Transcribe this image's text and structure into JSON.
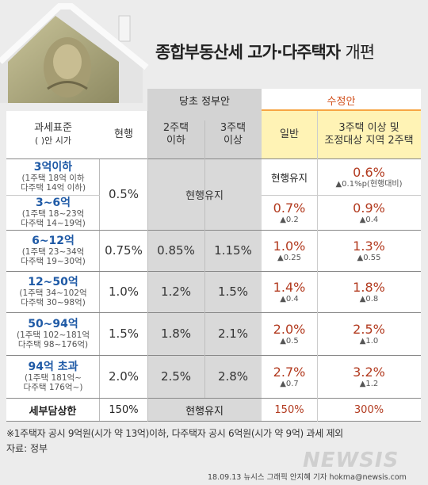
{
  "title": {
    "main": "종합부동산세 고가·다주택자",
    "suffix": "개편"
  },
  "header": {
    "group_original": "당초 정부안",
    "group_revised": "수정안",
    "col_base": [
      "과세표준",
      "( )안 시가"
    ],
    "col_current": "현행",
    "col_orig_2": [
      "2주택",
      "이하"
    ],
    "col_orig_3": [
      "3주택",
      "이상"
    ],
    "col_rev_general": "일반",
    "col_rev_multi": [
      "3주택 이상 및",
      "조정대상 지역 2주택"
    ]
  },
  "rows": [
    {
      "bracket": "3억이하",
      "notes": [
        "(1주택 18억 이하",
        "다주택 14억 이하)"
      ],
      "revised_general": "현행유지",
      "revised_multi": "0.6%",
      "revised_multi_sub": "▲0.1%p(현행대비)"
    },
    {
      "bracket": "3~6억",
      "notes": [
        "(1주택 18~23억",
        "다주택 14~19억)"
      ],
      "revised_general": "0.7%",
      "revised_general_sub": "▲0.2",
      "revised_multi": "0.9%",
      "revised_multi_sub": "▲0.4"
    },
    {
      "bracket": "6~12억",
      "notes": [
        "(1주택 23~34억",
        "다주택 19~30억)"
      ],
      "current": "0.75%",
      "orig_2": "0.85%",
      "orig_3": "1.15%",
      "revised_general": "1.0%",
      "revised_general_sub": "▲0.25",
      "revised_multi": "1.3%",
      "revised_multi_sub": "▲0.55"
    },
    {
      "bracket": "12~50억",
      "notes": [
        "(1주택 34~102억",
        "다주택 30~98억)"
      ],
      "current": "1.0%",
      "orig_2": "1.2%",
      "orig_3": "1.5%",
      "revised_general": "1.4%",
      "revised_general_sub": "▲0.4",
      "revised_multi": "1.8%",
      "revised_multi_sub": "▲0.8"
    },
    {
      "bracket": "50~94억",
      "notes": [
        "(1주택 102~181억",
        "다주택 98~176억)"
      ],
      "current": "1.5%",
      "orig_2": "1.8%",
      "orig_3": "2.1%",
      "revised_general": "2.0%",
      "revised_general_sub": "▲0.5",
      "revised_multi": "2.5%",
      "revised_multi_sub": "▲1.0"
    },
    {
      "bracket": "94억 초과",
      "notes": [
        "(1주택 181억~",
        "다주택 176억~)"
      ],
      "current": "2.0%",
      "orig_2": "2.5%",
      "orig_3": "2.8%",
      "revised_general": "2.7%",
      "revised_general_sub": "▲0.7",
      "revised_multi": "3.2%",
      "revised_multi_sub": "▲1.2"
    }
  ],
  "merged": {
    "current_first_two": "0.5%",
    "orig_first_two": "현행유지"
  },
  "cap_row": {
    "label": "세부담상한",
    "current": "150%",
    "orig": "현행유지",
    "revised_general": "150%",
    "revised_multi": "300%"
  },
  "footnote": "※1주택자 공시 9억원(시가 약 13억)이하, 다주택자 공시 6억원(시가 약 9억) 과세 제외",
  "source": "자료: 정부",
  "brand": "NEWSIS",
  "credit": "18.09.13 뉴시스 그래픽 안지혜 기자 hokma@newsis.com",
  "colors": {
    "accent_blue": "#1f5aa6",
    "accent_red": "#b23a1f",
    "header_orange": "#f7a544",
    "highlight_yellow": "#fff3b5"
  }
}
